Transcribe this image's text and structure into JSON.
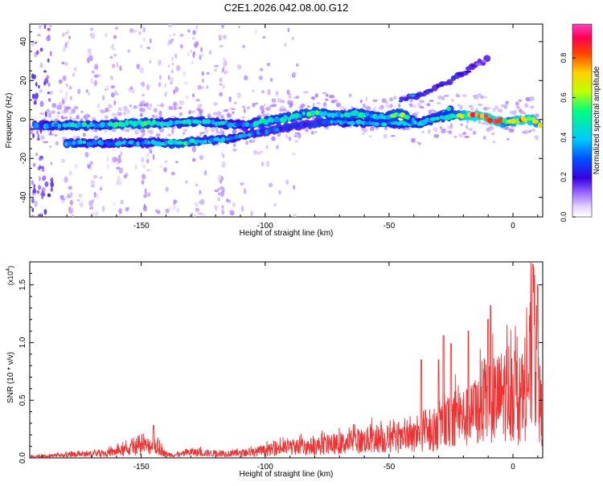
{
  "title": "C2E1.2026.042.08.00.G12",
  "chart_data": [
    {
      "type": "heatmap",
      "name": "spectrogram",
      "xlabel": "Height of straight line (km)",
      "ylabel": "Frequency (Hz)",
      "xlim": [
        -195,
        12
      ],
      "ylim": [
        -50,
        49
      ],
      "xticks": [
        -150,
        -100,
        -50,
        0
      ],
      "xtick_labels": [
        "-150",
        "-100",
        "-50",
        "0"
      ],
      "yticks": [
        40,
        20,
        0,
        -20,
        -40
      ],
      "ytick_labels": [
        "40",
        "20",
        "0",
        "-20",
        "-40"
      ],
      "colorbar": {
        "label": "Normalized spectral amplitude",
        "range": [
          0,
          0.97
        ],
        "ticks": [
          0.0,
          0.2,
          0.4,
          0.6,
          0.8
        ],
        "tick_labels": [
          "0.0",
          "0.2",
          "0.4",
          "0.6",
          "0.8"
        ],
        "colormap": [
          "#ffffff",
          "#e6d6ff",
          "#a070ff",
          "#3a00e0",
          "#0050ff",
          "#00c8ff",
          "#00ff80",
          "#c0ff00",
          "#ffd000",
          "#ff4000",
          "#ff0050",
          "#ff40c0"
        ]
      },
      "main_band": [
        [
          -193,
          -3,
          0.3
        ],
        [
          -185,
          -3,
          0.4
        ],
        [
          -175,
          -3,
          0.45
        ],
        [
          -165,
          -3,
          0.4
        ],
        [
          -155,
          -2,
          0.55
        ],
        [
          -148,
          -2,
          0.5
        ],
        [
          -140,
          -2,
          0.4
        ],
        [
          -128,
          -1,
          0.45
        ],
        [
          -118,
          -2,
          0.4
        ],
        [
          -108,
          -3,
          0.35
        ],
        [
          -100,
          -1,
          0.5
        ],
        [
          -90,
          1,
          0.45
        ],
        [
          -80,
          4,
          0.55
        ],
        [
          -72,
          2,
          0.45
        ],
        [
          -62,
          3,
          0.5
        ],
        [
          -52,
          1,
          0.45
        ],
        [
          -45,
          3,
          0.55
        ],
        [
          -38,
          -2,
          0.4
        ],
        [
          -30,
          1,
          0.45
        ],
        [
          -24,
          2,
          0.5
        ],
        [
          -18,
          2,
          0.75
        ],
        [
          -12,
          2,
          0.9
        ],
        [
          -7,
          -1,
          0.85
        ],
        [
          -2,
          -1,
          0.55
        ],
        [
          3,
          0,
          0.8
        ],
        [
          8,
          0,
          0.7
        ],
        [
          11,
          -3,
          0.6
        ]
      ],
      "lower_band": [
        [
          -180,
          -12,
          0.45
        ],
        [
          -170,
          -12,
          0.4
        ],
        [
          -158,
          -12,
          0.35
        ],
        [
          -145,
          -12,
          0.4
        ],
        [
          -135,
          -12,
          0.5
        ],
        [
          -125,
          -11,
          0.45
        ],
        [
          -115,
          -10,
          0.4
        ],
        [
          -105,
          -7,
          0.35
        ],
        [
          -95,
          -5,
          0.3
        ],
        [
          -85,
          -3,
          0.3
        ],
        [
          -72,
          -1,
          0.35
        ],
        [
          -55,
          -2,
          0.4
        ],
        [
          -40,
          -2,
          0.45
        ],
        [
          -33,
          0,
          0.45
        ],
        [
          -28,
          3,
          0.5
        ],
        [
          -25,
          6,
          0.45
        ]
      ],
      "upper_branch": [
        [
          -45,
          10,
          0.3
        ],
        [
          -40,
          12,
          0.35
        ],
        [
          -35,
          14,
          0.3
        ],
        [
          -30,
          17,
          0.25
        ],
        [
          -25,
          20,
          0.25
        ],
        [
          -20,
          24,
          0.2
        ],
        [
          -15,
          28,
          0.15
        ],
        [
          -10,
          31,
          0.1
        ]
      ]
    },
    {
      "type": "line",
      "name": "snr",
      "xlabel": "Height of straight line (km)",
      "ylabel": "SNR (10 * v/v)",
      "y_multiplier": "(x10",
      "y_multiplier_exp": "4",
      "y_multiplier_close": ")",
      "xlim": [
        -195,
        12
      ],
      "ylim": [
        0,
        1.7
      ],
      "xticks": [
        -150,
        -100,
        -50,
        0
      ],
      "xtick_labels": [
        "-150",
        "-100",
        "-50",
        "0"
      ],
      "yticks": [
        0.0,
        0.5,
        1.0,
        1.5
      ],
      "ytick_labels": [
        "0.0",
        "0.5",
        "1.0",
        "1.5"
      ],
      "color": "#ee3333",
      "envelope": [
        [
          -195,
          0.02
        ],
        [
          -185,
          0.03
        ],
        [
          -175,
          0.05
        ],
        [
          -165,
          0.06
        ],
        [
          -158,
          0.1
        ],
        [
          -150,
          0.15
        ],
        [
          -145,
          0.18
        ],
        [
          -140,
          0.05
        ],
        [
          -135,
          0.04
        ],
        [
          -130,
          0.08
        ],
        [
          -120,
          0.06
        ],
        [
          -110,
          0.06
        ],
        [
          -100,
          0.1
        ],
        [
          -95,
          0.13
        ],
        [
          -90,
          0.15
        ],
        [
          -80,
          0.16
        ],
        [
          -75,
          0.18
        ],
        [
          -70,
          0.19
        ],
        [
          -65,
          0.22
        ],
        [
          -60,
          0.24
        ],
        [
          -55,
          0.26
        ],
        [
          -50,
          0.25
        ],
        [
          -45,
          0.24
        ],
        [
          -40,
          0.28
        ],
        [
          -35,
          0.32
        ],
        [
          -30,
          0.38
        ],
        [
          -27,
          0.45
        ],
        [
          -25,
          0.55
        ],
        [
          -22,
          0.58
        ],
        [
          -18,
          0.55
        ],
        [
          -15,
          0.65
        ],
        [
          -12,
          0.7
        ],
        [
          -9,
          0.75
        ],
        [
          -5,
          0.85
        ],
        [
          -2,
          0.95
        ],
        [
          1,
          0.85
        ],
        [
          3,
          0.6
        ],
        [
          5,
          0.95
        ],
        [
          7,
          1.25
        ],
        [
          8,
          1.55
        ],
        [
          9,
          1.4
        ],
        [
          10,
          1.0
        ],
        [
          11,
          0.7
        ],
        [
          12,
          0.55
        ]
      ],
      "spikes": [
        [
          -145,
          0.28
        ],
        [
          -37,
          0.85
        ],
        [
          -30,
          0.85
        ],
        [
          -28,
          1.06
        ],
        [
          -25,
          0.99
        ],
        [
          -18,
          1.1
        ],
        [
          -10,
          1.2
        ],
        [
          -9,
          1.32
        ],
        [
          8,
          1.68
        ],
        [
          10,
          1.5
        ]
      ]
    }
  ]
}
